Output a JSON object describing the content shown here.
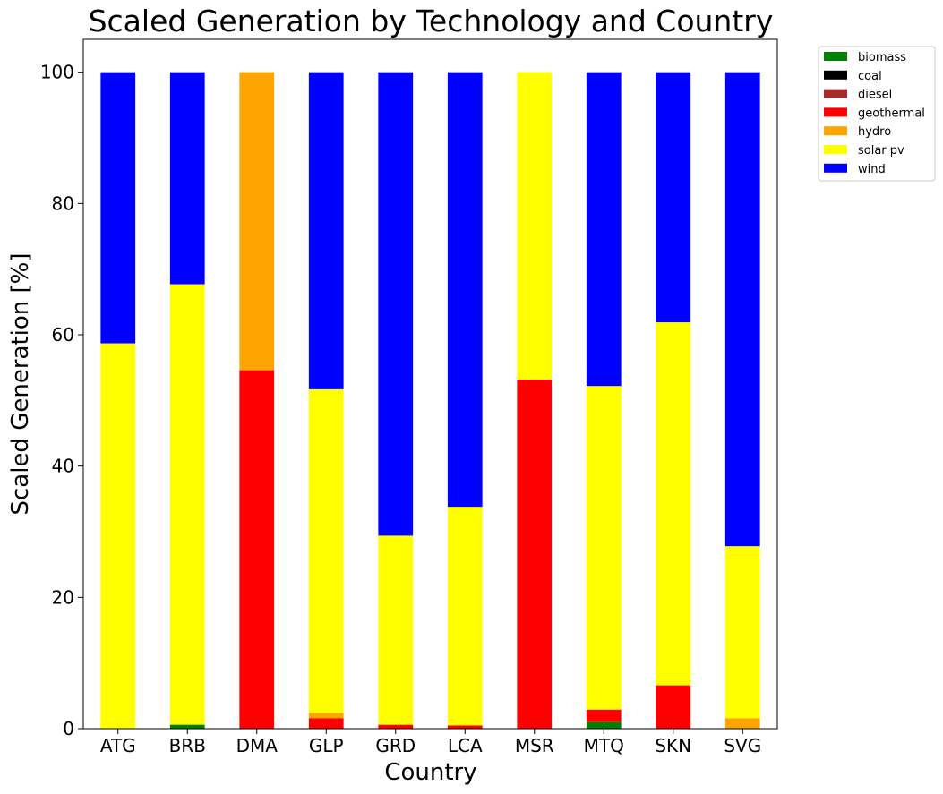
{
  "chart_data": {
    "type": "bar",
    "stacked": true,
    "title": "Scaled Generation by Technology and Country",
    "xlabel": "Country",
    "ylabel": "Scaled Generation [%]",
    "ylim": [
      0,
      105
    ],
    "yticks": [
      0,
      20,
      40,
      60,
      80,
      100
    ],
    "grid": false,
    "legend_position": "upper right, outside plot area",
    "categories": [
      "ATG",
      "BRB",
      "DMA",
      "GLP",
      "GRD",
      "LCA",
      "MSR",
      "MTQ",
      "SKN",
      "SVG"
    ],
    "series": [
      {
        "name": "biomass",
        "color": "#008000",
        "values": [
          0,
          0.6,
          0,
          0,
          0,
          0,
          0,
          1.0,
          0,
          0
        ]
      },
      {
        "name": "coal",
        "color": "#000000",
        "values": [
          0,
          0,
          0,
          0,
          0,
          0,
          0,
          0,
          0,
          0
        ]
      },
      {
        "name": "diesel",
        "color": "#a52a2a",
        "values": [
          0,
          0,
          0,
          0,
          0,
          0,
          0,
          0,
          0,
          0
        ]
      },
      {
        "name": "geothermal",
        "color": "#ff0000",
        "values": [
          0,
          0,
          54.6,
          1.6,
          0.6,
          0.5,
          53.2,
          1.9,
          6.6,
          0
        ]
      },
      {
        "name": "hydro",
        "color": "#ffa500",
        "values": [
          0,
          0,
          45.4,
          0.8,
          0,
          0,
          0,
          0,
          0,
          1.6
        ]
      },
      {
        "name": "solar pv",
        "color": "#ffff00",
        "values": [
          58.7,
          67.1,
          0,
          49.3,
          28.8,
          33.3,
          46.8,
          49.3,
          55.3,
          26.2
        ]
      },
      {
        "name": "wind",
        "color": "#0000ff",
        "values": [
          41.3,
          32.3,
          0,
          48.3,
          70.6,
          66.2,
          0,
          47.8,
          38.1,
          72.2
        ]
      }
    ]
  }
}
